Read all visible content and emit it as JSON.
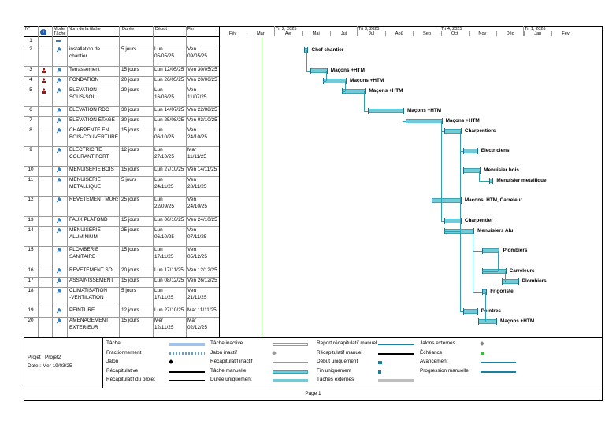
{
  "header": {
    "num": "N°",
    "mode": "Mode",
    "mode2": "Tâche",
    "name": "Nom de la tâche",
    "duration": "Durée",
    "start": "Début",
    "end": "Fin"
  },
  "timescale": {
    "quarters": [
      "Tri 2, 2025",
      "Tri 3, 2025",
      "Tri 4, 2025",
      "Tri 1, 2026"
    ],
    "months": [
      "Fév",
      "Mar",
      "Avr",
      "Mai",
      "Jui",
      "Jul",
      "Aoû",
      "Sep",
      "Oct",
      "Nov",
      "Déc",
      "Jan",
      "Fév"
    ]
  },
  "tasks": [
    {
      "id": "1",
      "name1": "",
      "name2": "",
      "dur": "",
      "start1": "",
      "start2": "",
      "end1": "",
      "end2": "",
      "label": ""
    },
    {
      "id": "2",
      "name1": "installation de",
      "name2": "chantier",
      "dur": "5 jours",
      "start1": "Lun",
      "start2": "05/05/25",
      "end1": "Ven",
      "end2": "09/05/25",
      "label": "Chef chantier"
    },
    {
      "id": "3",
      "name1": "Terrassement",
      "name2": "",
      "dur": "15 jours",
      "start1": "Lun 12/05/25",
      "start2": "",
      "end1": "Ven 30/05/25",
      "end2": "",
      "label": "Maçons +HTM"
    },
    {
      "id": "4",
      "name1": "FONDATION",
      "name2": "",
      "dur": "20 jours",
      "start1": "Lun 26/05/25",
      "start2": "",
      "end1": "Ven 20/06/25",
      "end2": "",
      "label": "Maçons +HTM"
    },
    {
      "id": "5",
      "name1": "ELEVATION",
      "name2": "SOUS-SOL",
      "dur": "20 jours",
      "start1": "Lun",
      "start2": "16/06/25",
      "end1": "Ven",
      "end2": "11/07/25",
      "label": "Maçons +HTM"
    },
    {
      "id": "6",
      "name1": "ELEVATION RDC",
      "name2": "",
      "dur": "30 jours",
      "start1": "Lun 14/07/25",
      "start2": "",
      "end1": "Ven 22/08/25",
      "end2": "",
      "label": "Maçons +HTM"
    },
    {
      "id": "7",
      "name1": "ELEVATION ETAGE",
      "name2": "",
      "dur": "30 jours",
      "start1": "Lun 25/08/25",
      "start2": "",
      "end1": "Ven 03/10/25",
      "end2": "",
      "label": "Maçons +HTM"
    },
    {
      "id": "8",
      "name1": "CHARPENTE EN",
      "name2": "BOIS-COUVERTURE",
      "dur": "15 jours",
      "start1": "Lun",
      "start2": "06/10/25",
      "end1": "Ven",
      "end2": "24/10/25",
      "label": "Charpentiers"
    },
    {
      "id": "9",
      "name1": "ELECTRICITE",
      "name2": "COURANT FORT",
      "dur": "12 jours",
      "start1": "Lun",
      "start2": "27/10/25",
      "end1": "Mar",
      "end2": "11/11/25",
      "label": "Electriciens"
    },
    {
      "id": "10",
      "name1": "MENUISERIE BOIS",
      "name2": "",
      "dur": "15 jours",
      "start1": "Lun 27/10/25",
      "start2": "",
      "end1": "Ven 14/11/25",
      "end2": "",
      "label": "Menuisier bois"
    },
    {
      "id": "11",
      "name1": "MENUISERIE",
      "name2": "METALLIQUE",
      "dur": "5 jours",
      "start1": "Lun",
      "start2": "24/11/25",
      "end1": "Ven",
      "end2": "28/11/25",
      "label": "Menuisier metallique"
    },
    {
      "id": "12",
      "name1": "REVETEMENT MURS",
      "name2": "",
      "dur": "25 jours",
      "start1": "Lun",
      "start2": "22/09/25",
      "end1": "Ven",
      "end2": "24/10/25",
      "label": "Maçons, HTM, Carreleur"
    },
    {
      "id": "13",
      "name1": "FAUX PLAFOND",
      "name2": "",
      "dur": "15 jours",
      "start1": "Lun 06/10/25",
      "start2": "",
      "end1": "Ven 24/10/25",
      "end2": "",
      "label": "Charpentier"
    },
    {
      "id": "14",
      "name1": "MENUISERIE",
      "name2": "ALUMINIUM",
      "dur": "25 jours",
      "start1": "Lun",
      "start2": "06/10/25",
      "end1": "Ven",
      "end2": "07/11/25",
      "label": "Menuisiers Alu"
    },
    {
      "id": "15",
      "name1": "PLOMBERIE",
      "name2": "SANITAIRE",
      "dur": "15 jours",
      "start1": "Lun",
      "start2": "17/11/25",
      "end1": "Ven",
      "end2": "05/12/25",
      "label": "Plombiers"
    },
    {
      "id": "16",
      "name1": "REVETEMENT SOL",
      "name2": "",
      "dur": "20 jours",
      "start1": "Lun 17/11/25",
      "start2": "",
      "end1": "Ven 12/12/25",
      "end2": "",
      "label": "Carreleurs"
    },
    {
      "id": "17",
      "name1": "ASSAINISSEMENT",
      "name2": "",
      "dur": "15 jours",
      "start1": "Lun 08/12/25",
      "start2": "",
      "end1": "Ven 26/12/25",
      "end2": "",
      "label": "Plombiers"
    },
    {
      "id": "18",
      "name1": "CLIMATISATION",
      "name2": "-VENTILATION",
      "dur": "5 jours",
      "start1": "Lun",
      "start2": "17/11/25",
      "end1": "Ven",
      "end2": "21/11/25",
      "label": "Frigoriste"
    },
    {
      "id": "19",
      "name1": "PEINTURE",
      "name2": "",
      "dur": "12 jours",
      "start1": "Lun 27/10/25",
      "start2": "",
      "end1": "Mar 11/11/25",
      "end2": "",
      "label": "Peintres"
    },
    {
      "id": "20",
      "name1": "AMENAGEMENT",
      "name2": "EXTERIEUR",
      "dur": "15 jours",
      "start1": "Mer",
      "start2": "12/11/25",
      "end1": "Mar",
      "end2": "02/12/25",
      "label": "Maçons +HTM"
    }
  ],
  "legend": {
    "project1": "Projet : Projet2",
    "project2": "Date : Mer 19/03/25",
    "col1": [
      "Tâche",
      "Fractionnement",
      "Jalon",
      "Récapitulative",
      "Récapitulatif du projet"
    ],
    "col2": [
      "Tâche inactive",
      "Jalon inactif",
      "Récapitulatif inactif",
      "Tâche manuelle",
      "Durée uniquement"
    ],
    "col3": [
      "Report récapitulatif manuel",
      "Récapitulatif manuel",
      "Début uniquement",
      "Fin uniquement",
      "Tâches externes"
    ],
    "col4": [
      "Jalons externes",
      "Échéance",
      "Avancement",
      "Progression manuelle"
    ]
  },
  "footer": {
    "page": "Page 1"
  },
  "colors": {
    "bar": "#74c9d4",
    "barBorder": "#3aa6b5",
    "link": "#2f9fb1"
  }
}
